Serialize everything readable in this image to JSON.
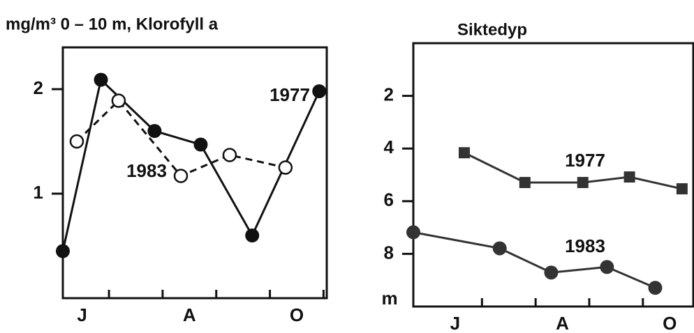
{
  "chart_data": [
    {
      "type": "line",
      "title": "mg/m³ 0 – 10 m, Klorofyll a",
      "xlim": [
        5.64,
        10.56
      ],
      "xticks": [
        {
          "value": 6,
          "label": "J"
        },
        {
          "value": 8,
          "label": "A"
        },
        {
          "value": 10,
          "label": "O"
        }
      ],
      "x_minor_ticks": [
        6.5,
        7.5,
        8.5,
        9.5,
        10.5
      ],
      "ylim": [
        0,
        2.4
      ],
      "yticks": [
        1,
        2
      ],
      "series": [
        {
          "name": "1977",
          "color": "#111111",
          "marker": "filled-circle",
          "dashed": false,
          "x": [
            5.64,
            6.35,
            7.35,
            8.21,
            9.17,
            10.42
          ],
          "values": [
            0.45,
            2.09,
            1.6,
            1.47,
            0.6,
            1.98
          ]
        },
        {
          "name": "1983",
          "color": "#111111",
          "marker": "open-circle",
          "dashed": true,
          "x": [
            5.9,
            6.68,
            7.84,
            8.75,
            9.79
          ],
          "values": [
            1.5,
            1.89,
            1.17,
            1.37,
            1.25
          ]
        }
      ]
    },
    {
      "type": "line",
      "title": "Siktedyp",
      "y_label": "m",
      "y_inverted": true,
      "xlim": [
        5.22,
        10.44
      ],
      "xticks": [
        {
          "value": 6,
          "label": "J"
        },
        {
          "value": 8,
          "label": "A"
        },
        {
          "value": 10,
          "label": "O"
        }
      ],
      "x_minor_ticks": [
        6.5,
        7.5,
        8.5,
        9.5
      ],
      "ylim": [
        0,
        10
      ],
      "yticks": [
        2,
        4,
        6,
        8
      ],
      "series": [
        {
          "name": "1977",
          "color": "#333333",
          "marker": "filled-square",
          "dashed": false,
          "x": [
            6.17,
            7.3,
            8.38,
            9.25,
            10.23
          ],
          "values": [
            4.16,
            5.29,
            5.29,
            5.08,
            5.53
          ]
        },
        {
          "name": "1983",
          "color": "#333333",
          "marker": "filled-circle",
          "dashed": false,
          "x": [
            5.22,
            6.83,
            7.79,
            8.83,
            9.73
          ],
          "values": [
            7.18,
            7.79,
            8.71,
            8.5,
            9.29
          ]
        }
      ]
    }
  ]
}
